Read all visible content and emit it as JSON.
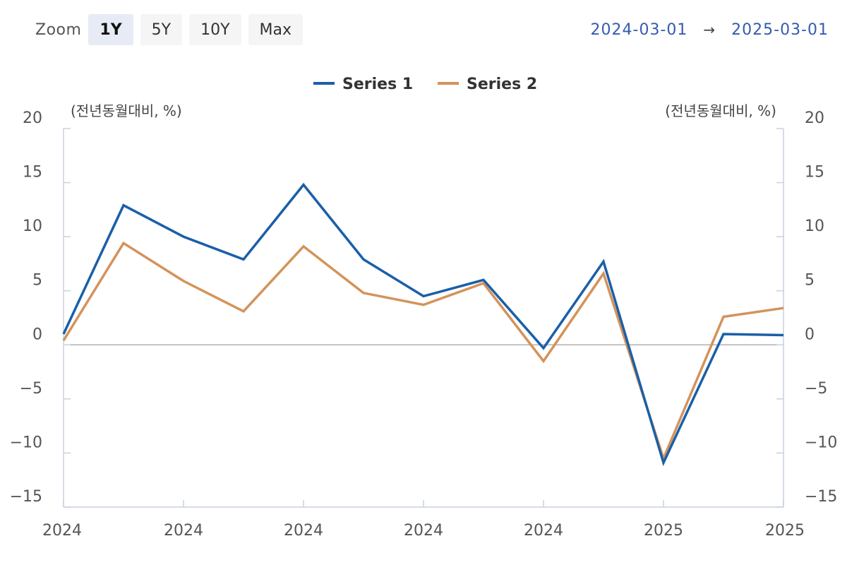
{
  "zoom": {
    "label": "Zoom",
    "buttons": [
      {
        "label": "1Y",
        "active": true
      },
      {
        "label": "5Y",
        "active": false
      },
      {
        "label": "10Y",
        "active": false
      },
      {
        "label": "Max",
        "active": false
      }
    ]
  },
  "range": {
    "from": "2024-03-01",
    "arrow": "→",
    "to": "2025-03-01"
  },
  "colors": {
    "series1": "#1a5fa8",
    "series2": "#d4935a",
    "zero_line": "#b0b0b0",
    "axis": "#c8d0e0"
  },
  "chart_data": {
    "type": "line",
    "title": "",
    "left_axis_unit": "(전년동월대비, %)",
    "right_axis_unit": "(전년동월대비, %)",
    "ylim": [
      -15,
      20
    ],
    "y_ticks": [
      20,
      15,
      10,
      5,
      0,
      -5,
      -10,
      -15
    ],
    "y_tick_labels": [
      "20",
      "15",
      "10",
      "5",
      "0",
      "−5",
      "−10",
      "−15"
    ],
    "x_tick_labels": [
      "2024",
      "2024",
      "2024",
      "2024",
      "2024",
      "2025",
      "2025"
    ],
    "legend_position": "top-center",
    "grid": false,
    "series": [
      {
        "name": "Series 1",
        "values": [
          1.0,
          12.9,
          10.0,
          7.9,
          14.8,
          7.9,
          4.5,
          6.0,
          -0.3,
          7.7,
          -10.9,
          1.0,
          0.9
        ]
      },
      {
        "name": "Series 2",
        "values": [
          0.4,
          9.4,
          5.9,
          3.1,
          9.1,
          4.8,
          3.7,
          5.7,
          -1.5,
          6.6,
          -10.5,
          2.6,
          3.4
        ]
      }
    ]
  }
}
